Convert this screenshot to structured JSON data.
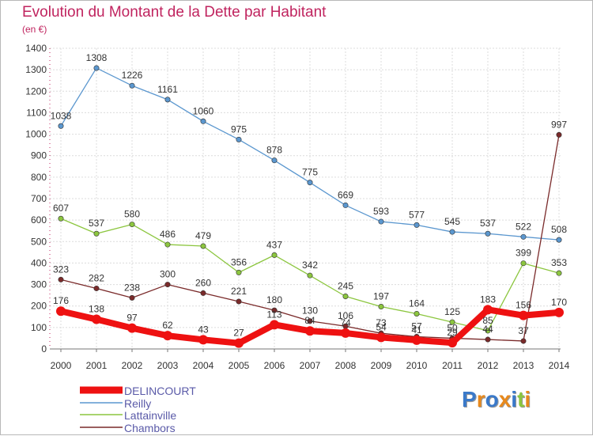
{
  "title": "Evolution du Montant de la Dette par Habitant",
  "unit_label": "(en €)",
  "logo": {
    "text": "Proxiti",
    "letter_colors": [
      "#3a79c9",
      "#e8891c",
      "#3a79c9",
      "#e8891c",
      "#3a79c9",
      "#8bc53f",
      "#e8891c"
    ]
  },
  "chart_data": {
    "type": "line",
    "title": "Evolution du Montant de la Dette par Habitant",
    "ylabel": "(en €)",
    "xlabel": "",
    "x": [
      "2000",
      "2001",
      "2002",
      "2003",
      "2004",
      "2005",
      "2006",
      "2007",
      "2008",
      "2009",
      "2010",
      "2011",
      "2012",
      "2013",
      "2014"
    ],
    "ylim": [
      0,
      1400
    ],
    "yticks": [
      "0",
      "100",
      "200",
      "300",
      "400",
      "500",
      "600",
      "700",
      "800",
      "900",
      "1000",
      "1100",
      "1200",
      "1300",
      "1400"
    ],
    "grid": true,
    "legend_position": "bottom-left",
    "series": [
      {
        "name": "DELINCOURT",
        "color": "#ee1111",
        "emphasis": true,
        "values": [
          176,
          138,
          97,
          62,
          43,
          27,
          113,
          84,
          74,
          54,
          41,
          29,
          183,
          156,
          170
        ],
        "labels": [
          "176",
          "138",
          "97",
          "62",
          "43",
          "27",
          "113",
          "84",
          "74",
          "54",
          "41",
          "29",
          "183",
          "156",
          "170"
        ]
      },
      {
        "name": "Reilly",
        "color": "#5b97cf",
        "values": [
          1038,
          1308,
          1226,
          1161,
          1060,
          975,
          878,
          775,
          669,
          593,
          577,
          545,
          537,
          522,
          508
        ],
        "labels": [
          "1038",
          "1308",
          "1226",
          "1161",
          "1060",
          "975",
          "878",
          "775",
          "669",
          "593",
          "577",
          "545",
          "537",
          "522",
          "508"
        ]
      },
      {
        "name": "Lattainville",
        "color": "#8cc63f",
        "values": [
          607,
          537,
          580,
          486,
          479,
          356,
          437,
          342,
          245,
          197,
          164,
          125,
          85,
          399,
          353
        ],
        "labels": [
          "607",
          "537",
          "580",
          "486",
          "479",
          "356",
          "437",
          "342",
          "245",
          "197",
          "164",
          "125",
          "85",
          "399",
          "353"
        ]
      },
      {
        "name": "Chambors",
        "color": "#7a2a2a",
        "values": [
          323,
          282,
          238,
          300,
          260,
          221,
          180,
          130,
          106,
          73,
          57,
          50,
          44,
          37,
          997
        ],
        "labels": [
          "323",
          "282",
          "238",
          "300",
          "260",
          "221",
          "180",
          "130",
          "106",
          "73",
          "57",
          "50",
          "44",
          "37",
          "997"
        ]
      }
    ]
  }
}
